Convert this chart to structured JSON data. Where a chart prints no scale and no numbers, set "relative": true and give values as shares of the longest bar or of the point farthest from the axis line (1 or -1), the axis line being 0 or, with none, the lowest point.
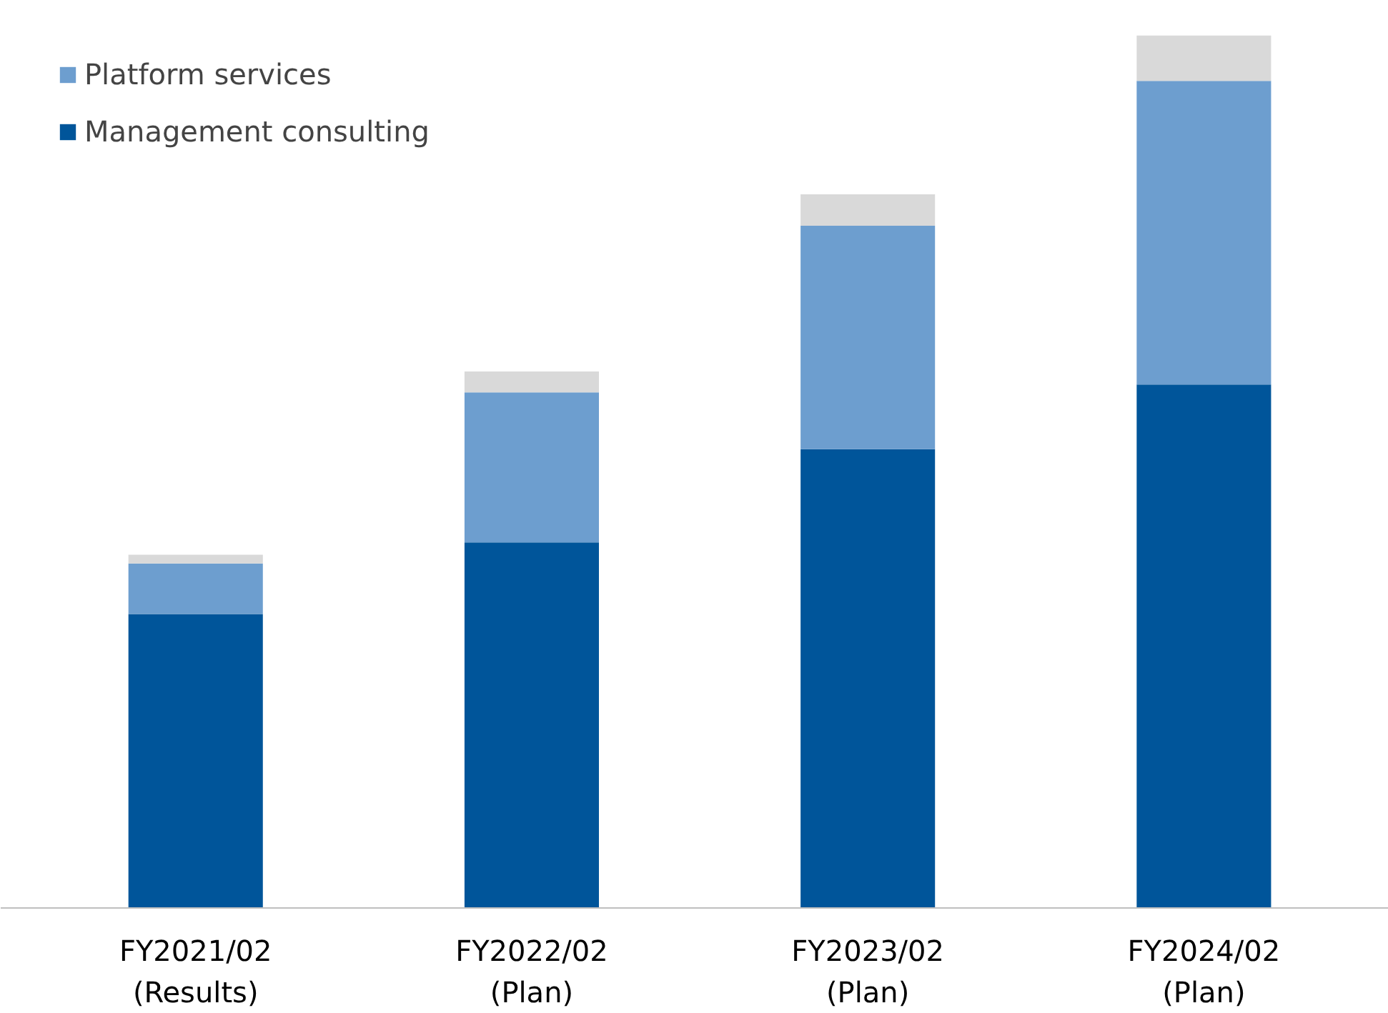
{
  "chart_data": {
    "type": "bar",
    "stacked": true,
    "relative": true,
    "legend": "top left",
    "categories": [
      "FY2021/02\n(Results)",
      "FY2022/02\n(Plan)",
      "FY2023/02\n(Plan)",
      "FY2024/02\n(Plan)"
    ],
    "series": [
      {
        "name": "Management consulting",
        "color": "#00559a",
        "values": [
          0.337,
          0.419,
          0.526,
          0.6
        ]
      },
      {
        "name": "Platform services",
        "color": "#6d9ecf",
        "values": [
          0.058,
          0.172,
          0.256,
          0.348
        ]
      },
      {
        "color": "#d9d9d9",
        "values": [
          0.01,
          0.024,
          0.036,
          0.052
        ]
      }
    ]
  }
}
